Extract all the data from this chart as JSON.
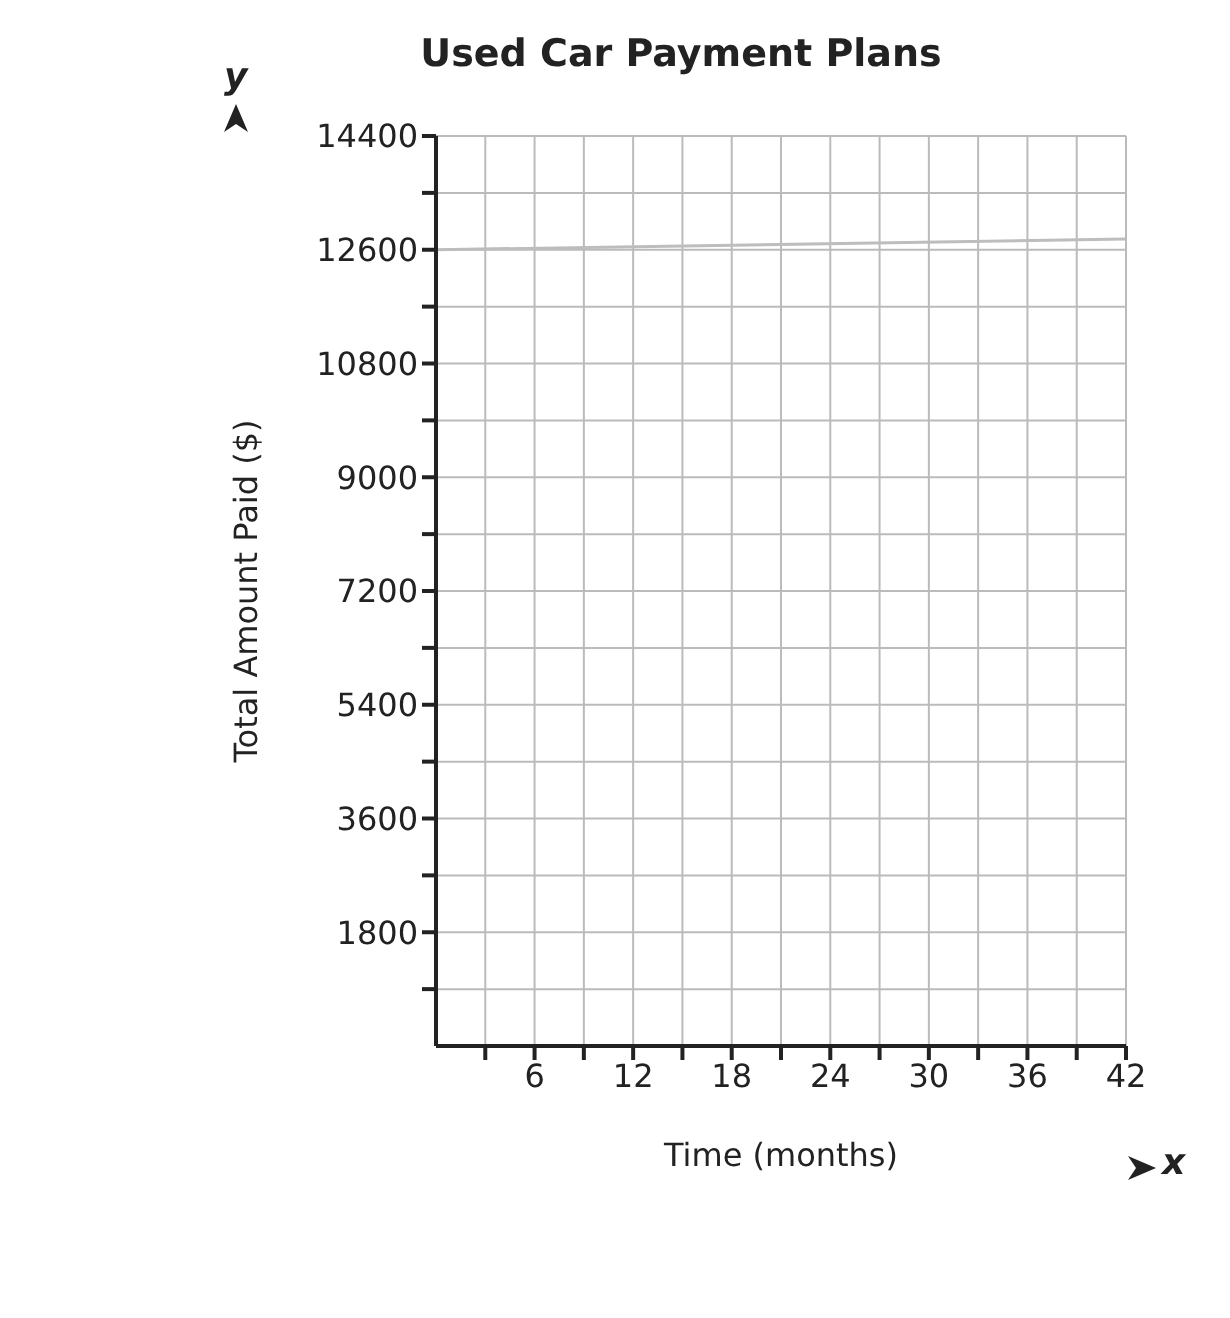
{
  "chart_data": {
    "type": "line",
    "title": "Used Car Payment Plans",
    "xlabel": "Time (months)",
    "ylabel": "Total Amount Paid ($)",
    "annotations": [
      "x",
      "y"
    ],
    "series": [
      {
        "color": "#bdbdbd",
        "x": [
          0,
          42
        ],
        "values": [
          12600,
          12770
        ]
      }
    ],
    "xlim": [
      0,
      42
    ],
    "xticks": [
      {
        "value": 3,
        "label": null
      },
      6,
      {
        "value": 9,
        "label": null
      },
      12,
      {
        "value": 15,
        "label": null
      },
      18,
      {
        "value": 21,
        "label": null
      },
      24,
      {
        "value": 27,
        "label": null
      },
      30,
      {
        "value": 33,
        "label": null
      },
      36,
      {
        "value": 39,
        "label": null
      },
      42
    ],
    "ylim": [
      0,
      14400
    ],
    "yticks": [
      {
        "value": 900,
        "label": null
      },
      1800,
      {
        "value": 2700,
        "label": null
      },
      3600,
      {
        "value": 4500,
        "label": null
      },
      5400,
      {
        "value": 6300,
        "label": null
      },
      7200,
      {
        "value": 8100,
        "label": null
      },
      9000,
      {
        "value": 9900,
        "label": null
      },
      10800,
      {
        "value": 11700,
        "label": null
      },
      12600,
      {
        "value": 13500,
        "label": null
      },
      14400
    ],
    "grid": true,
    "marker": "none",
    "line_style": "solid",
    "legend": false
  }
}
